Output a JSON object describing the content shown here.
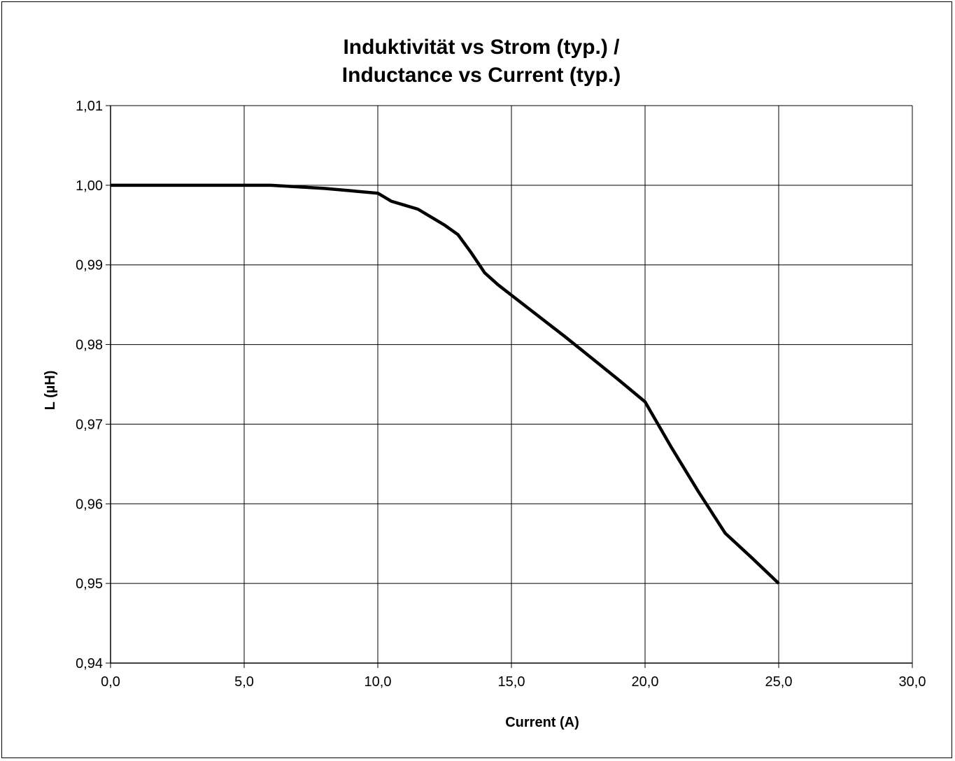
{
  "chart_data": {
    "type": "line",
    "title_line1": "Induktivität vs Strom (typ.) /",
    "title_line2": "Inductance vs Current (typ.)",
    "xlabel": "Current (A)",
    "ylabel": "L (µH)",
    "xlim": [
      0,
      30
    ],
    "ylim": [
      0.94,
      1.01
    ],
    "x_ticks": [
      "0,0",
      "5,0",
      "10,0",
      "15,0",
      "20,0",
      "25,0",
      "30,0"
    ],
    "y_ticks": [
      "1,01",
      "1,00",
      "0,99",
      "0,98",
      "0,97",
      "0,96",
      "0,95",
      "0,94"
    ],
    "grid": true,
    "legend": "none",
    "series": [
      {
        "color": "#000000",
        "x": [
          0,
          1,
          2,
          3,
          4,
          5,
          6,
          7,
          8,
          9,
          10,
          10.5,
          11,
          11.5,
          12,
          12.5,
          13,
          13.5,
          14,
          14.5,
          15,
          16,
          17,
          18,
          19,
          20,
          21,
          22,
          23,
          24,
          25
        ],
        "y": [
          1.0,
          1.0,
          1.0,
          1.0,
          1.0,
          1.0,
          1.0,
          0.9998,
          0.9996,
          0.9993,
          0.999,
          0.998,
          0.9975,
          0.997,
          0.996,
          0.995,
          0.9938,
          0.9915,
          0.989,
          0.9875,
          0.9862,
          0.9836,
          0.981,
          0.9783,
          0.9756,
          0.9728,
          0.967,
          0.9615,
          0.9563,
          0.9532,
          0.95
        ]
      }
    ]
  }
}
